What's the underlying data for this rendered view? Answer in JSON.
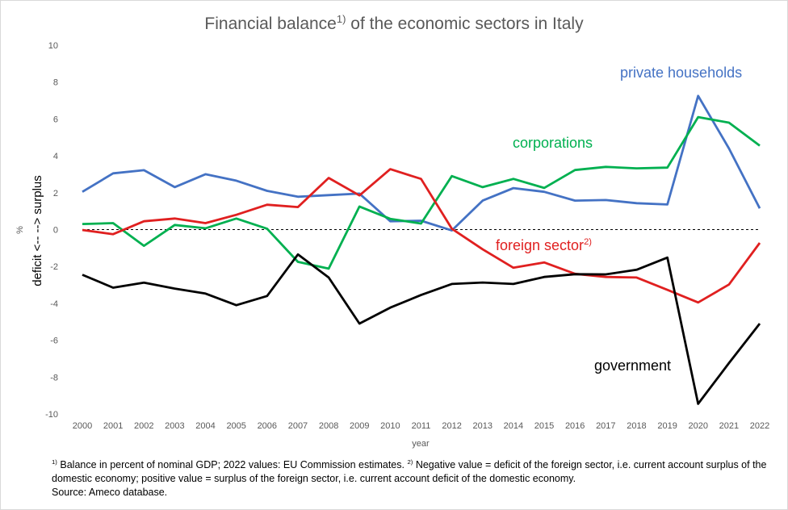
{
  "title": {
    "main": "Financial balance",
    "sup": "1)",
    "rest": " of the economic sectors in Italy"
  },
  "chart_data": {
    "type": "line",
    "x": [
      "2000",
      "2001",
      "2002",
      "2003",
      "2004",
      "2005",
      "2006",
      "2007",
      "2008",
      "2009",
      "2010",
      "2011",
      "2012",
      "2013",
      "2014",
      "2015",
      "2016",
      "2017",
      "2018",
      "2019",
      "2020",
      "2021",
      "2022"
    ],
    "xlabel": "year",
    "ylabel": {
      "unit": "%",
      "text": "deficit <-- --> surplus"
    },
    "ylim": [
      -10,
      10
    ],
    "yticks": [
      "10",
      "8",
      "6",
      "4",
      "2",
      "0",
      "-2",
      "-4",
      "-6",
      "-8",
      "-10"
    ],
    "grid": false,
    "series": [
      {
        "name": "private households",
        "color": "#4472c4",
        "values": [
          2.05,
          3.05,
          3.22,
          2.3,
          3.0,
          2.65,
          2.1,
          1.78,
          1.87,
          1.95,
          0.45,
          0.48,
          -0.05,
          1.57,
          2.25,
          2.05,
          1.57,
          1.6,
          1.43,
          1.36,
          7.25,
          4.4,
          1.15
        ]
      },
      {
        "name": "corporations",
        "color": "#00b050",
        "values": [
          0.3,
          0.35,
          -0.88,
          0.25,
          0.07,
          0.6,
          0.05,
          -1.75,
          -2.12,
          1.25,
          0.58,
          0.33,
          2.9,
          2.3,
          2.75,
          2.26,
          3.23,
          3.4,
          3.32,
          3.36,
          6.1,
          5.8,
          4.55
        ]
      },
      {
        "name": "foreign sector",
        "name_sup": "2)",
        "color": "#e02020",
        "values": [
          -0.02,
          -0.25,
          0.45,
          0.6,
          0.35,
          0.8,
          1.35,
          1.22,
          2.8,
          1.85,
          3.28,
          2.75,
          0.05,
          -1.07,
          -2.07,
          -1.78,
          -2.4,
          -2.57,
          -2.6,
          -3.27,
          -3.95,
          -2.98,
          -0.72
        ]
      },
      {
        "name": "government",
        "color": "#000000",
        "values": [
          -2.45,
          -3.15,
          -2.88,
          -3.2,
          -3.47,
          -4.1,
          -3.6,
          -1.35,
          -2.6,
          -5.1,
          -4.23,
          -3.55,
          -2.95,
          -2.87,
          -2.95,
          -2.57,
          -2.42,
          -2.43,
          -2.18,
          -1.52,
          -9.45,
          -7.24,
          -5.1
        ]
      }
    ]
  },
  "footnote": {
    "n1": "1)",
    "t1": " Balance in percent of nominal GDP; 2022 values: EU Commission estimates. ",
    "n2": "2)",
    "t2": " Negative value = deficit of the foreign sector, i.e.  current account surplus of the domestic economy; positive value = surplus of the foreign sector, i.e. current account deficit of the domestic economy.",
    "source": "Source: Ameco database."
  }
}
